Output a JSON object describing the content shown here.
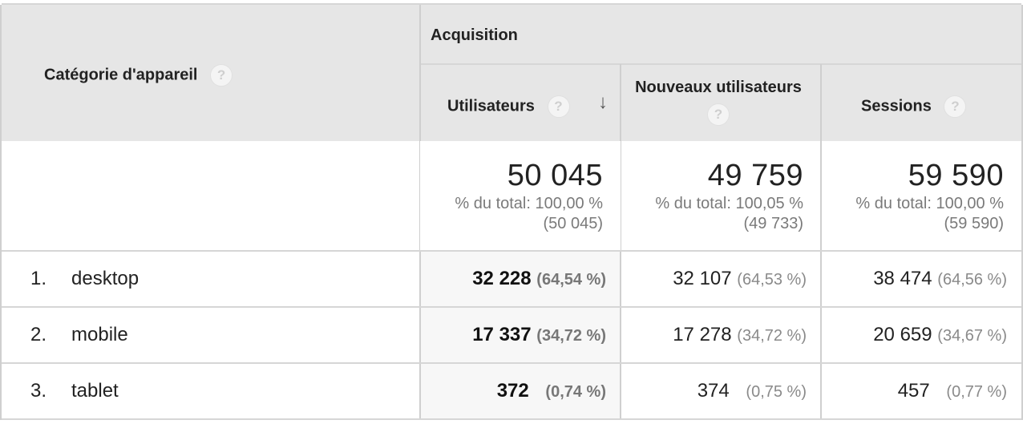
{
  "header": {
    "dimension_label": "Catégorie d'appareil",
    "group_label": "Acquisition",
    "col1_label": "Utilisateurs",
    "col2_label": "Nouveaux utilisateurs",
    "col3_label": "Sessions",
    "help_glyph": "?",
    "sort_glyph": "↓"
  },
  "totals": {
    "col1": {
      "value": "50 045",
      "pct_line": "% du total: 100,00 %",
      "abs_line": "(50 045)"
    },
    "col2": {
      "value": "49 759",
      "pct_line": "% du total: 100,05 %",
      "abs_line": "(49 733)"
    },
    "col3": {
      "value": "59 590",
      "pct_line": "% du total: 100,00 %",
      "abs_line": "(59 590)"
    }
  },
  "rows": [
    {
      "num": "1.",
      "name": "desktop",
      "c1": "32 228",
      "c1p": "(64,54 %)",
      "c2": "32 107",
      "c2p": "(64,53 %)",
      "c3": "38 474",
      "c3p": "(64,56 %)"
    },
    {
      "num": "2.",
      "name": "mobile",
      "c1": "17 337",
      "c1p": "(34,72 %)",
      "c2": "17 278",
      "c2p": "(34,72 %)",
      "c3": "20 659",
      "c3p": "(34,67 %)"
    },
    {
      "num": "3.",
      "name": "tablet",
      "c1": "372",
      "c1p": "(0,74 %)",
      "c2": "374",
      "c2p": "(0,75 %)",
      "c3": "457",
      "c3p": "(0,77 %)"
    }
  ]
}
